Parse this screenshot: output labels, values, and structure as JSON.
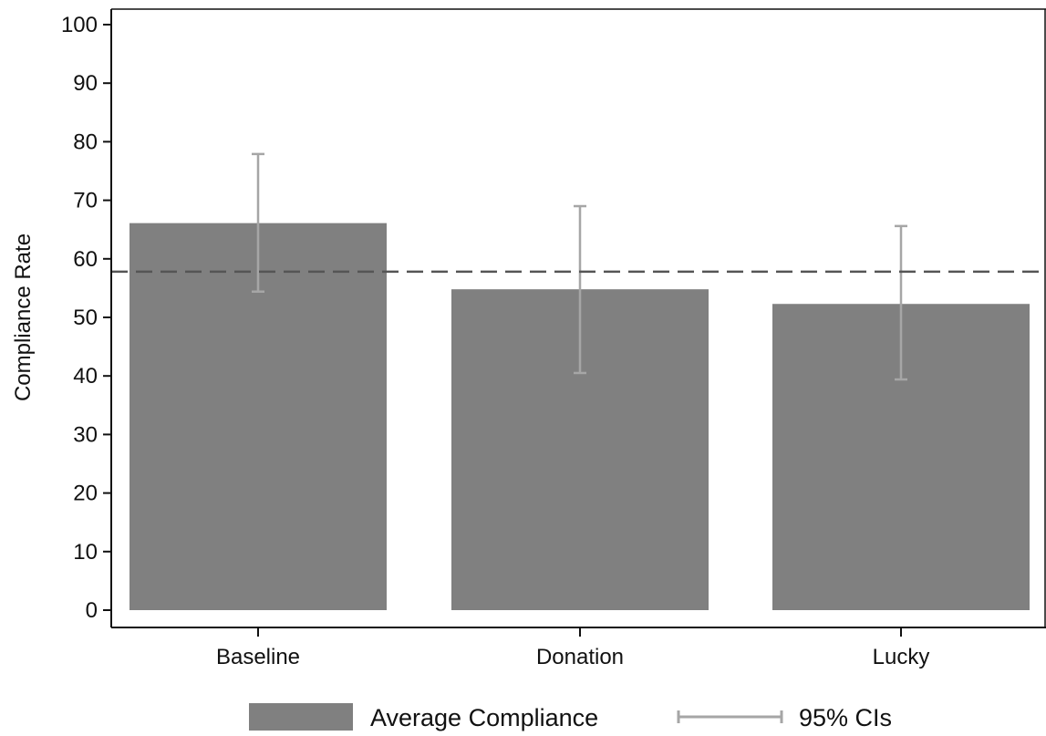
{
  "chart_data": {
    "type": "bar",
    "title": "",
    "xlabel": "",
    "ylabel": "Compliance Rate",
    "ylim": [
      0,
      100
    ],
    "yticks": [
      0,
      10,
      20,
      30,
      40,
      50,
      60,
      70,
      80,
      90,
      100
    ],
    "categories": [
      "Baseline",
      "Donation",
      "Lucky"
    ],
    "series": [
      {
        "name": "Average Compliance",
        "values": [
          66.1,
          54.8,
          52.3
        ]
      }
    ],
    "error_bars": {
      "name": "95% CIs",
      "lower": [
        54.4,
        40.5,
        39.4
      ],
      "upper": [
        77.9,
        69.0,
        65.6
      ]
    },
    "reference_line": {
      "value": 57.8,
      "style": "dashed"
    },
    "grid": false,
    "legend_position": "bottom",
    "colors": {
      "bar": "#808080",
      "error_bar": "#a6a6a6",
      "reference_line": "#555555",
      "axis": "#111111"
    }
  }
}
